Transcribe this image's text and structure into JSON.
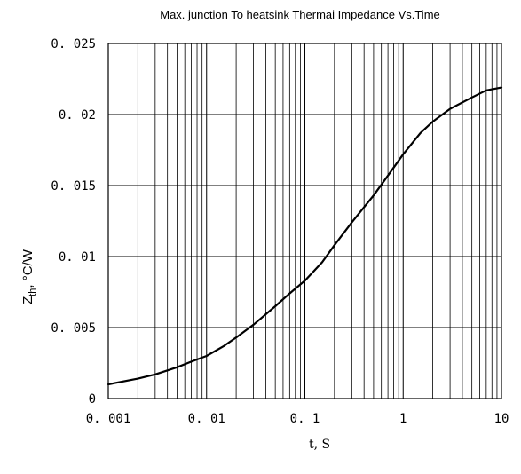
{
  "chart_data": {
    "type": "line",
    "title": "Max. junction To heatsink Thermai Impedance Vs.Time",
    "xlabel": "t, S",
    "ylabel": "Z",
    "ylabel_sub": "th",
    "ylabel_unit": ", °C/W",
    "x_scale": "log",
    "xlim": [
      0.001,
      10
    ],
    "ylim": [
      0,
      0.025
    ],
    "grid": true,
    "x_ticks": [
      0.001,
      0.01,
      0.1,
      1,
      10
    ],
    "x_tick_labels": [
      "0. 001",
      "0. 01",
      "0. 1",
      "1",
      "10"
    ],
    "y_ticks": [
      0,
      0.005,
      0.01,
      0.015,
      0.02,
      0.025
    ],
    "y_tick_labels": [
      "0",
      "0. 005",
      "0. 01",
      "0. 015",
      "0. 02",
      "0. 025"
    ],
    "series": [
      {
        "x": [
          0.001,
          0.002,
          0.003,
          0.005,
          0.007,
          0.01,
          0.015,
          0.02,
          0.03,
          0.05,
          0.07,
          0.1,
          0.15,
          0.2,
          0.3,
          0.5,
          0.7,
          1,
          1.5,
          2,
          3,
          5,
          7,
          10
        ],
        "y": [
          0.001,
          0.0014,
          0.0017,
          0.0022,
          0.0026,
          0.003,
          0.0037,
          0.0043,
          0.0052,
          0.0065,
          0.0074,
          0.0083,
          0.0096,
          0.0108,
          0.0124,
          0.0143,
          0.0157,
          0.0172,
          0.0187,
          0.0195,
          0.0204,
          0.0212,
          0.0217,
          0.0219
        ]
      }
    ]
  }
}
